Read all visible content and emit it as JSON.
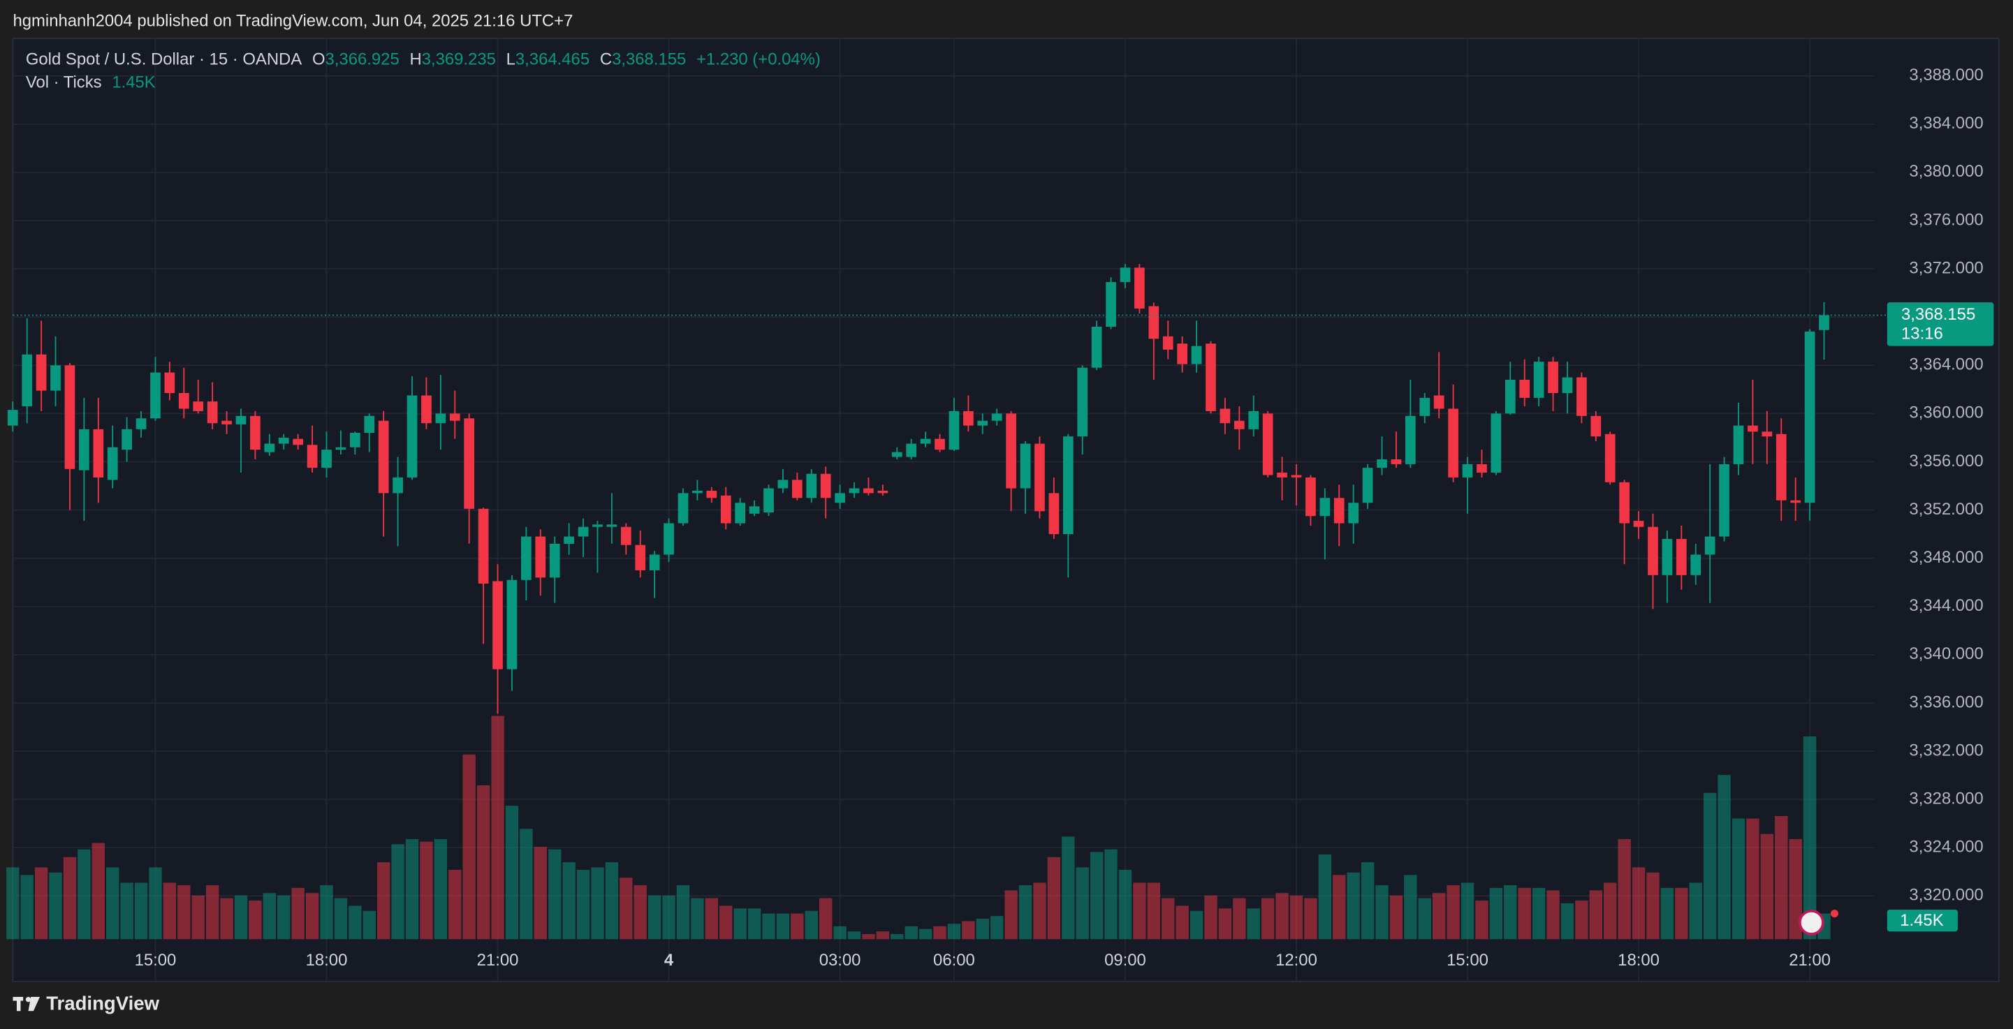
{
  "header": {
    "published": "hgminhanh2004 published on TradingView.com, Jun 04, 2025 21:16 UTC+7"
  },
  "footer": {
    "brand": "TradingView"
  },
  "chart_data": {
    "type": "candlestick",
    "symbol": "Gold Spot / U.S. Dollar · 15 · OANDA",
    "ohlc_legend": [
      {
        "key": "O",
        "value": "3,366.925"
      },
      {
        "key": "H",
        "value": "3,369.235"
      },
      {
        "key": "L",
        "value": "3,364.465"
      },
      {
        "key": "C",
        "value": "3,368.155"
      }
    ],
    "change": "+1.230 (+0.04%)",
    "volume_title": "Vol · Ticks",
    "volume_label": "1.45K",
    "last_price": {
      "value": 3368.155,
      "label": "3,368.155"
    },
    "countdown": "13:16",
    "up_color": "#089981",
    "down_color": "#f23645",
    "grid": true,
    "ylim": [
      3312.9,
      3391.1
    ],
    "yticks": [
      {
        "value": 3320,
        "label": "3,320.000"
      },
      {
        "value": 3324,
        "label": "3,324.000"
      },
      {
        "value": 3328,
        "label": "3,328.000"
      },
      {
        "value": 3332,
        "label": "3,332.000"
      },
      {
        "value": 3336,
        "label": "3,336.000"
      },
      {
        "value": 3340,
        "label": "3,340.000"
      },
      {
        "value": 3344,
        "label": "3,344.000"
      },
      {
        "value": 3348,
        "label": "3,348.000"
      },
      {
        "value": 3352,
        "label": "3,352.000"
      },
      {
        "value": 3356,
        "label": "3,356.000"
      },
      {
        "value": 3360,
        "label": "3,360.000"
      },
      {
        "value": 3364,
        "label": "3,364.000"
      },
      {
        "value": 3368,
        "label": "3,368.000"
      },
      {
        "value": 3372,
        "label": "3,372.000"
      },
      {
        "value": 3376,
        "label": "3,376.000"
      },
      {
        "value": 3380,
        "label": "3,380.000"
      },
      {
        "value": 3384,
        "label": "3,384.000"
      },
      {
        "value": 3388,
        "label": "3,388.000"
      }
    ],
    "xticks": [
      {
        "index": 10,
        "label": "15:00"
      },
      {
        "index": 22,
        "label": "18:00"
      },
      {
        "index": 34,
        "label": "21:00"
      },
      {
        "index": 46,
        "label": "4",
        "bold": true
      },
      {
        "index": 58,
        "label": "03:00"
      },
      {
        "index": 66,
        "label": "06:00"
      },
      {
        "index": 78,
        "label": "09:00"
      },
      {
        "index": 90,
        "label": "12:00"
      },
      {
        "index": 102,
        "label": "15:00"
      },
      {
        "index": 114,
        "label": "18:00"
      },
      {
        "index": 126,
        "label": "21:00"
      }
    ],
    "candles": [
      [
        3359.0,
        3361.0,
        3358.5,
        3360.3
      ],
      [
        3360.6,
        3367.9,
        3359.2,
        3364.9
      ],
      [
        3364.9,
        3367.7,
        3360.2,
        3361.9
      ],
      [
        3361.9,
        3366.4,
        3360.6,
        3364.0
      ],
      [
        3364.0,
        3364.2,
        3352.0,
        3355.4
      ],
      [
        3355.3,
        3361.3,
        3351.1,
        3358.7
      ],
      [
        3358.7,
        3361.3,
        3352.6,
        3354.7
      ],
      [
        3354.5,
        3359.0,
        3353.8,
        3357.2
      ],
      [
        3357.0,
        3359.7,
        3356.0,
        3358.7
      ],
      [
        3358.7,
        3360.2,
        3358.0,
        3359.6
      ],
      [
        3359.6,
        3364.7,
        3359.4,
        3363.4
      ],
      [
        3363.4,
        3364.3,
        3361.1,
        3361.7
      ],
      [
        3361.7,
        3363.8,
        3359.6,
        3360.4
      ],
      [
        3361.0,
        3362.8,
        3360.0,
        3360.2
      ],
      [
        3361.0,
        3362.6,
        3358.7,
        3359.2
      ],
      [
        3359.4,
        3360.2,
        3358.3,
        3359.1
      ],
      [
        3359.1,
        3360.4,
        3355.1,
        3359.8
      ],
      [
        3359.8,
        3360.2,
        3356.2,
        3357.0
      ],
      [
        3356.8,
        3358.3,
        3356.5,
        3357.5
      ],
      [
        3357.5,
        3358.3,
        3357.0,
        3358.0
      ],
      [
        3357.9,
        3358.3,
        3357.0,
        3357.4
      ],
      [
        3357.4,
        3359.0,
        3355.1,
        3355.5
      ],
      [
        3355.5,
        3358.5,
        3354.7,
        3357.0
      ],
      [
        3357.0,
        3358.6,
        3356.6,
        3357.2
      ],
      [
        3357.2,
        3358.5,
        3356.6,
        3358.4
      ],
      [
        3358.4,
        3360.0,
        3356.8,
        3359.8
      ],
      [
        3359.4,
        3360.2,
        3349.8,
        3353.4
      ],
      [
        3353.4,
        3356.4,
        3349.0,
        3354.7
      ],
      [
        3354.7,
        3363.1,
        3354.5,
        3361.5
      ],
      [
        3361.5,
        3363.0,
        3358.7,
        3359.2
      ],
      [
        3359.2,
        3363.2,
        3357.0,
        3360.0
      ],
      [
        3360.0,
        3361.9,
        3357.9,
        3359.4
      ],
      [
        3359.6,
        3360.0,
        3349.2,
        3352.1
      ],
      [
        3352.1,
        3352.2,
        3340.9,
        3345.9
      ],
      [
        3346.1,
        3347.5,
        3335.1,
        3338.8
      ],
      [
        3338.8,
        3346.6,
        3337.0,
        3346.2
      ],
      [
        3346.2,
        3350.6,
        3344.5,
        3349.8
      ],
      [
        3349.8,
        3350.4,
        3344.9,
        3346.4
      ],
      [
        3346.4,
        3349.8,
        3344.3,
        3349.2
      ],
      [
        3349.2,
        3350.9,
        3348.3,
        3349.8
      ],
      [
        3349.8,
        3351.3,
        3348.1,
        3350.6
      ],
      [
        3350.6,
        3351.1,
        3346.8,
        3350.8
      ],
      [
        3350.6,
        3353.4,
        3349.2,
        3350.8
      ],
      [
        3350.6,
        3350.9,
        3348.3,
        3349.1
      ],
      [
        3349.1,
        3350.3,
        3346.4,
        3347.0
      ],
      [
        3347.0,
        3348.6,
        3344.7,
        3348.3
      ],
      [
        3348.3,
        3351.3,
        3347.7,
        3350.9
      ],
      [
        3350.9,
        3353.8,
        3350.7,
        3353.4
      ],
      [
        3353.4,
        3354.5,
        3352.8,
        3353.6
      ],
      [
        3353.6,
        3353.9,
        3352.6,
        3353.0
      ],
      [
        3353.2,
        3353.9,
        3350.4,
        3350.9
      ],
      [
        3350.9,
        3353.0,
        3350.7,
        3352.6
      ],
      [
        3351.7,
        3352.8,
        3351.5,
        3352.3
      ],
      [
        3351.8,
        3354.1,
        3351.5,
        3353.8
      ],
      [
        3353.8,
        3355.4,
        3353.4,
        3354.5
      ],
      [
        3354.5,
        3355.1,
        3352.8,
        3353.0
      ],
      [
        3353.0,
        3355.4,
        3352.6,
        3355.0
      ],
      [
        3355.0,
        3355.6,
        3351.3,
        3353.0
      ],
      [
        3352.6,
        3354.1,
        3352.1,
        3353.4
      ],
      [
        3353.4,
        3354.3,
        3353.0,
        3353.8
      ],
      [
        3353.8,
        3354.7,
        3353.2,
        3353.4
      ],
      [
        3353.6,
        3354.1,
        3353.2,
        3353.4
      ],
      [
        3356.4,
        3357.2,
        3356.2,
        3356.8
      ],
      [
        3356.4,
        3357.9,
        3356.2,
        3357.5
      ],
      [
        3357.5,
        3358.5,
        3357.2,
        3357.9
      ],
      [
        3357.9,
        3358.3,
        3356.8,
        3357.0
      ],
      [
        3357.0,
        3361.3,
        3356.9,
        3360.2
      ],
      [
        3360.2,
        3361.5,
        3358.5,
        3359.0
      ],
      [
        3359.0,
        3360.0,
        3358.3,
        3359.4
      ],
      [
        3359.4,
        3360.4,
        3359.0,
        3360.0
      ],
      [
        3360.0,
        3360.2,
        3351.9,
        3353.8
      ],
      [
        3353.8,
        3357.7,
        3351.7,
        3357.5
      ],
      [
        3357.5,
        3358.1,
        3351.3,
        3351.9
      ],
      [
        3353.4,
        3354.7,
        3349.6,
        3350.0
      ],
      [
        3350.0,
        3358.3,
        3346.4,
        3358.1
      ],
      [
        3358.1,
        3364.0,
        3356.6,
        3363.8
      ],
      [
        3363.8,
        3367.7,
        3363.6,
        3367.2
      ],
      [
        3367.2,
        3371.3,
        3367.0,
        3370.9
      ],
      [
        3370.9,
        3372.4,
        3370.4,
        3372.1
      ],
      [
        3372.1,
        3372.4,
        3368.3,
        3368.7
      ],
      [
        3368.9,
        3369.2,
        3362.8,
        3366.2
      ],
      [
        3366.4,
        3367.7,
        3364.5,
        3365.3
      ],
      [
        3365.8,
        3366.4,
        3363.4,
        3364.1
      ],
      [
        3364.1,
        3367.7,
        3363.4,
        3365.6
      ],
      [
        3365.8,
        3366.0,
        3360.0,
        3360.2
      ],
      [
        3360.4,
        3361.3,
        3358.3,
        3359.2
      ],
      [
        3359.4,
        3360.6,
        3357.0,
        3358.7
      ],
      [
        3358.7,
        3361.5,
        3358.1,
        3360.2
      ],
      [
        3360.0,
        3360.2,
        3354.7,
        3354.9
      ],
      [
        3355.1,
        3356.4,
        3352.8,
        3354.7
      ],
      [
        3354.9,
        3355.8,
        3352.4,
        3354.7
      ],
      [
        3354.7,
        3354.9,
        3350.7,
        3351.5
      ],
      [
        3351.5,
        3353.8,
        3347.9,
        3353.0
      ],
      [
        3353.0,
        3354.1,
        3349.0,
        3350.9
      ],
      [
        3350.9,
        3354.1,
        3349.2,
        3352.6
      ],
      [
        3352.6,
        3355.8,
        3352.1,
        3355.5
      ],
      [
        3355.5,
        3358.1,
        3354.9,
        3356.2
      ],
      [
        3356.2,
        3358.5,
        3355.5,
        3355.8
      ],
      [
        3355.8,
        3362.8,
        3355.5,
        3359.8
      ],
      [
        3359.8,
        3361.7,
        3359.2,
        3361.3
      ],
      [
        3361.5,
        3365.1,
        3359.6,
        3360.4
      ],
      [
        3360.4,
        3362.4,
        3354.3,
        3354.7
      ],
      [
        3354.7,
        3356.4,
        3351.7,
        3355.8
      ],
      [
        3355.8,
        3357.0,
        3354.7,
        3355.1
      ],
      [
        3355.1,
        3360.2,
        3354.9,
        3360.0
      ],
      [
        3360.0,
        3364.3,
        3359.9,
        3362.8
      ],
      [
        3362.8,
        3364.5,
        3360.6,
        3361.3
      ],
      [
        3361.3,
        3364.7,
        3360.6,
        3364.3
      ],
      [
        3364.3,
        3364.7,
        3360.2,
        3361.7
      ],
      [
        3361.7,
        3364.3,
        3360.0,
        3363.0
      ],
      [
        3363.0,
        3363.4,
        3359.2,
        3359.8
      ],
      [
        3359.8,
        3360.2,
        3357.7,
        3358.1
      ],
      [
        3358.3,
        3358.5,
        3354.1,
        3354.3
      ],
      [
        3354.3,
        3354.5,
        3347.5,
        3350.9
      ],
      [
        3351.1,
        3351.9,
        3349.6,
        3350.6
      ],
      [
        3350.6,
        3351.7,
        3343.8,
        3346.6
      ],
      [
        3346.6,
        3350.3,
        3344.3,
        3349.6
      ],
      [
        3349.6,
        3350.7,
        3345.4,
        3346.6
      ],
      [
        3346.6,
        3349.2,
        3345.8,
        3348.3
      ],
      [
        3348.3,
        3355.8,
        3344.3,
        3349.8
      ],
      [
        3349.8,
        3356.4,
        3349.4,
        3355.8
      ],
      [
        3355.8,
        3360.9,
        3354.9,
        3359.0
      ],
      [
        3359.0,
        3362.8,
        3355.8,
        3358.5
      ],
      [
        3358.5,
        3360.2,
        3355.8,
        3358.1
      ],
      [
        3358.3,
        3359.6,
        3351.1,
        3352.8
      ],
      [
        3352.8,
        3354.7,
        3351.1,
        3352.6
      ],
      [
        3352.6,
        3367.0,
        3351.1,
        3366.8
      ],
      [
        3366.925,
        3369.235,
        3364.465,
        3368.155
      ]
    ],
    "volume": [
      4060,
      3630,
      4060,
      3770,
      4640,
      5080,
      5440,
      4060,
      3190,
      3190,
      4060,
      3190,
      3050,
      2470,
      3050,
      2320,
      2470,
      2180,
      2610,
      2470,
      2900,
      2610,
      3050,
      2320,
      1890,
      1600,
      4350,
      5370,
      5660,
      5510,
      5660,
      3920,
      10440,
      8700,
      12620,
      7540,
      6240,
      5220,
      5080,
      4350,
      3920,
      4060,
      4350,
      3480,
      3050,
      2470,
      2470,
      3050,
      2320,
      2320,
      1890,
      1740,
      1740,
      1450,
      1450,
      1450,
      1600,
      2320,
      730,
      440,
      290,
      440,
      290,
      730,
      580,
      730,
      870,
      1020,
      1160,
      1310,
      2760,
      3050,
      3190,
      4640,
      5800,
      4060,
      4930,
      5080,
      3920,
      3190,
      3190,
      2320,
      1890,
      1600,
      2470,
      1740,
      2320,
      1740,
      2320,
      2610,
      2470,
      2320,
      4790,
      3630,
      3770,
      4350,
      3050,
      2470,
      3630,
      2320,
      2610,
      3050,
      3190,
      2180,
      2900,
      3050,
      2900,
      2900,
      2760,
      2030,
      2180,
      2760,
      3190,
      5660,
      4060,
      3770,
      2900,
      2900,
      3190,
      8270,
      9280,
      6820,
      6820,
      5950,
      6960,
      5660,
      11460,
      1450
    ]
  }
}
